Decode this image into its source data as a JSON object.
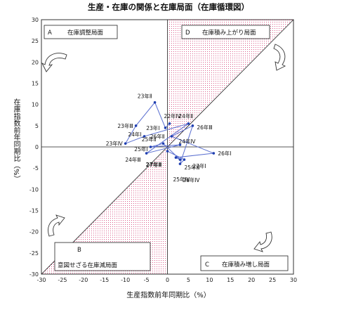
{
  "chart_data": {
    "type": "scatter",
    "title": "生産・在庫の関係と在庫局面（在庫循環図）",
    "xlabel": "生産指数前年同期比（%）",
    "ylabel": "在庫指数前年同期比（%）",
    "xlim": [
      -30,
      30
    ],
    "ylim": [
      -30,
      30
    ],
    "xticks": [
      -30,
      -25,
      -20,
      -15,
      -10,
      -5,
      0,
      5,
      10,
      15,
      20,
      25,
      30
    ],
    "yticks": [
      -30,
      -25,
      -20,
      -15,
      -10,
      -5,
      0,
      5,
      10,
      15,
      20,
      25,
      30
    ],
    "grid": false,
    "regions": [
      {
        "letter": "A",
        "label": "在庫調整局面"
      },
      {
        "letter": "D",
        "label": "在庫積み上がり局面"
      },
      {
        "letter": "B",
        "label": "意図せざる在庫減局面"
      },
      {
        "letter": "C",
        "label": "在庫積み増し局面"
      }
    ],
    "series": [
      {
        "points": [
          {
            "label": "22年Ⅳ",
            "x": 0.5,
            "y": 5.5
          },
          {
            "label": "23年Ⅰ",
            "x": -0.5,
            "y": 4.5
          },
          {
            "label": "23年Ⅱ",
            "x": -3.0,
            "y": 10.5
          },
          {
            "label": "23年Ⅲ",
            "x": -7.5,
            "y": 5.0
          },
          {
            "label": "23年Ⅳ",
            "x": -10.0,
            "y": 0.8
          },
          {
            "label": "24年Ⅰ",
            "x": -5.5,
            "y": 2.5
          },
          {
            "label": "24年Ⅱ",
            "x": 5.0,
            "y": 5.5
          },
          {
            "label": "24年Ⅲ",
            "x": -5.0,
            "y": -1.5
          },
          {
            "label": "24年Ⅳ",
            "x": 3.0,
            "y": 0.5
          },
          {
            "label": "25年Ⅰ",
            "x": -4.0,
            "y": 0.0
          },
          {
            "label": "25年Ⅱ",
            "x": -1.0,
            "y": 0.8
          },
          {
            "label": "25年Ⅲ",
            "x": 3.0,
            "y": -3.0
          },
          {
            "label": "25年Ⅳ",
            "x": 2.0,
            "y": -2.5
          },
          {
            "label": "26年Ⅰ",
            "x": 11.0,
            "y": -1.5
          },
          {
            "label": "26年Ⅱ",
            "x": 1.0,
            "y": 2.5
          },
          {
            "label": "26年Ⅲ",
            "x": 6.0,
            "y": 5.0
          },
          {
            "label": "26年Ⅳ",
            "x": 3.0,
            "y": -4.0
          },
          {
            "label": "27年Ⅰ",
            "x": 4.0,
            "y": -3.0
          },
          {
            "label": "27年Ⅱ",
            "x": 0.0,
            "y": -1.0
          }
        ]
      }
    ]
  },
  "colors": {
    "hatch": "#d2336e",
    "line": "#5a6fd0",
    "marker": "#1f3fb0"
  }
}
